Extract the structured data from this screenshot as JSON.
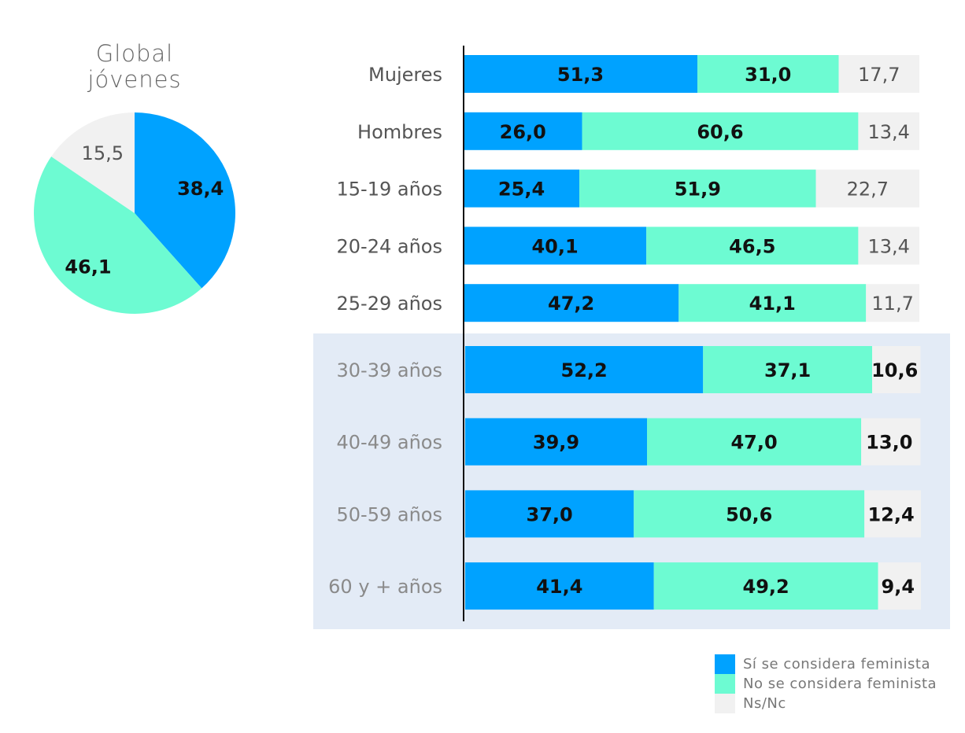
{
  "chart_data": [
    {
      "type": "pie",
      "title": "Global jóvenes",
      "title_lines": [
        "Global",
        "jóvenes"
      ],
      "slices": [
        {
          "label": "Sí se considera feminista",
          "value": 38.4,
          "display": "38,4",
          "color": "#00a2ff"
        },
        {
          "label": "No se considera feminista",
          "value": 46.1,
          "display": "46,1",
          "color": "#6dfbd2"
        },
        {
          "label": "Ns/Nc",
          "value": 15.5,
          "display": "15,5",
          "color": "#f1f1f1"
        }
      ]
    },
    {
      "type": "bar",
      "orientation": "horizontal",
      "stacked": true,
      "xlim": [
        0,
        100
      ],
      "categories": [
        "Mujeres",
        "Hombres",
        "15-19 años",
        "20-24 años",
        "25-29 años",
        "30-39 años",
        "40-49 años",
        "50-59 años",
        "60 y + años"
      ],
      "highlighted_categories": [
        "30-39 años",
        "40-49 años",
        "50-59 años",
        "60 y + años"
      ],
      "series": [
        {
          "name": "Sí se considera feminista",
          "color": "#00a2ff",
          "values": [
            51.3,
            26.0,
            25.4,
            40.1,
            47.2,
            52.2,
            39.9,
            37.0,
            41.4
          ],
          "labels": [
            "51,3",
            "26,0",
            "25,4",
            "40,1",
            "47,2",
            "52,2",
            "39,9",
            "37,0",
            "41,4"
          ]
        },
        {
          "name": "No se considera feminista",
          "color": "#6dfbd2",
          "values": [
            31.0,
            60.6,
            51.9,
            46.5,
            41.1,
            37.1,
            47.0,
            50.6,
            49.2
          ],
          "labels": [
            "31,0",
            "60,6",
            "51,9",
            "46,5",
            "41,1",
            "37,1",
            "47,0",
            "50,6",
            "49,2"
          ]
        },
        {
          "name": "Ns/Nc",
          "color": "#f1f1f1",
          "values": [
            17.7,
            13.4,
            22.7,
            13.4,
            11.7,
            10.6,
            13.0,
            12.4,
            9.4
          ],
          "labels": [
            "17,7",
            "13,4",
            "22,7",
            "13,4",
            "11,7",
            "10,6",
            "13,0",
            "12,4",
            "9,4"
          ]
        }
      ],
      "legend_position": "bottom-right",
      "highlight_color": "#e3ebf6"
    }
  ]
}
